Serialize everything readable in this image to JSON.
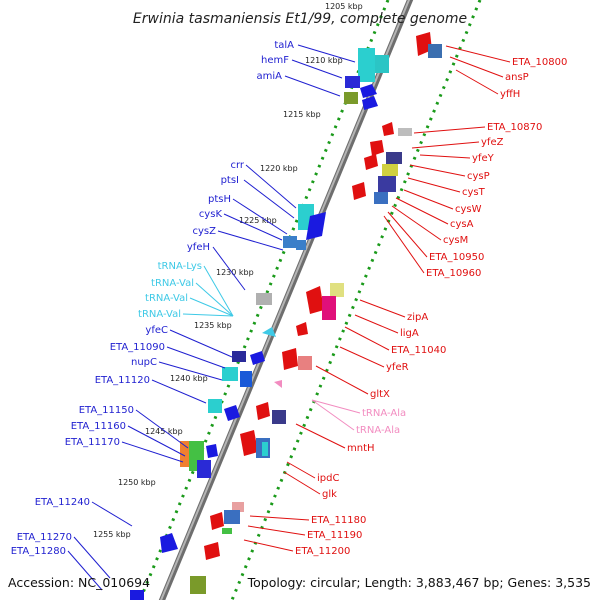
{
  "title": "Erwinia tasmaniensis Et1/99, complete genome",
  "accession": "Accession: NC_010694",
  "topology": "Topology: circular; Length: 3,883,467 bp; Genes: 3,535",
  "kbp_labels": [
    "1205 kbp",
    "1210 kbp",
    "1215 kbp",
    "1220 kbp",
    "1225 kbp",
    "1230 kbp",
    "1235 kbp",
    "1240 kbp",
    "1245 kbp",
    "1250 kbp",
    "1255 kbp"
  ],
  "colors": {
    "left_label": "#1f1fd0",
    "trna_left": "#3ec9e6",
    "right_label": "#e01010",
    "trna_right": "#f28cc0",
    "backbone": "#8c8c8c",
    "tick_dots": "#1a9a1a"
  },
  "left_labels": [
    "talA",
    "hemF",
    "amiA",
    "crr",
    "ptsI",
    "ptsH",
    "cysK",
    "cysZ",
    "yfeH",
    "tRNA-Lys",
    "tRNA-Val",
    "tRNA-Val",
    "tRNA-Val",
    "yfeC",
    "ETA_11090",
    "nupC",
    "ETA_11120",
    "ETA_11150",
    "ETA_11160",
    "ETA_11170",
    "ETA_11240",
    "ETA_11270",
    "ETA_11280"
  ],
  "right_labels": [
    "ETA_10800",
    "ansP",
    "yffH",
    "ETA_10870",
    "yfeZ",
    "yfeY",
    "cysP",
    "cysT",
    "cysW",
    "cysA",
    "cysM",
    "ETA_10950",
    "ETA_10960",
    "zipA",
    "ligA",
    "ETA_11040",
    "yfeR",
    "gltX",
    "tRNA-Ala",
    "tRNA-Ala",
    "mntH",
    "ipdC",
    "glk",
    "ETA_11180",
    "ETA_11190",
    "ETA_11200"
  ]
}
